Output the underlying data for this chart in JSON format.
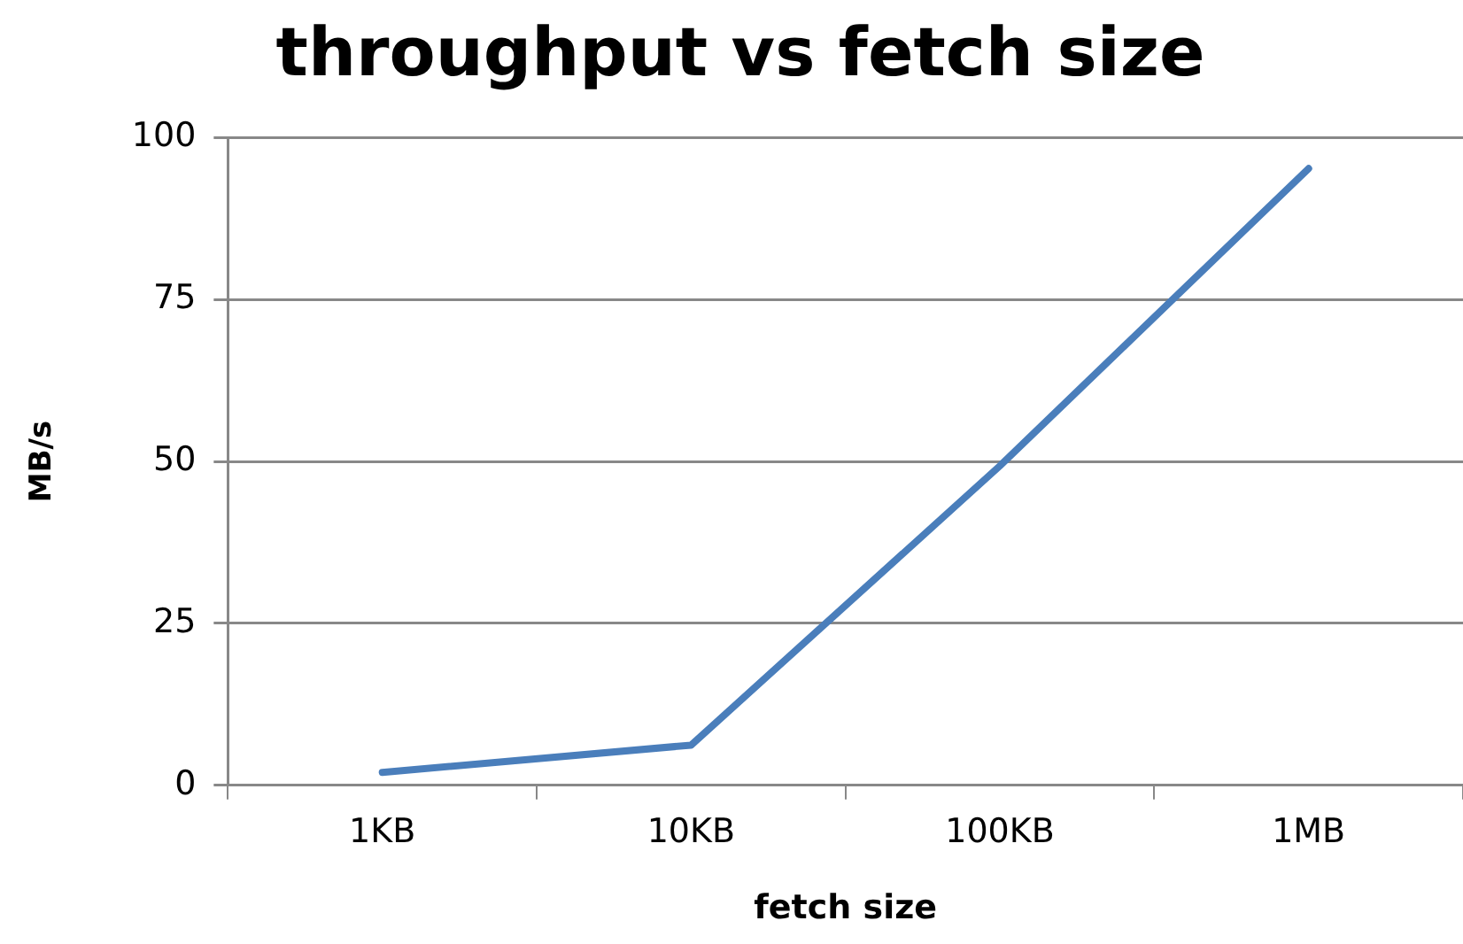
{
  "chart_data": {
    "type": "line",
    "title": "throughput vs fetch size",
    "xlabel": "fetch size",
    "ylabel": "MB/s",
    "categories": [
      "1KB",
      "10KB",
      "100KB",
      "1MB"
    ],
    "series": [
      {
        "color": "#4a7ebb",
        "values": [
          2,
          6.2,
          49.3,
          95.2
        ]
      }
    ],
    "ylim": [
      0,
      100
    ],
    "yticks": [
      0,
      25,
      50,
      75,
      100
    ],
    "grid": "y",
    "legend": false,
    "marker": "none",
    "line_style": "solid"
  }
}
